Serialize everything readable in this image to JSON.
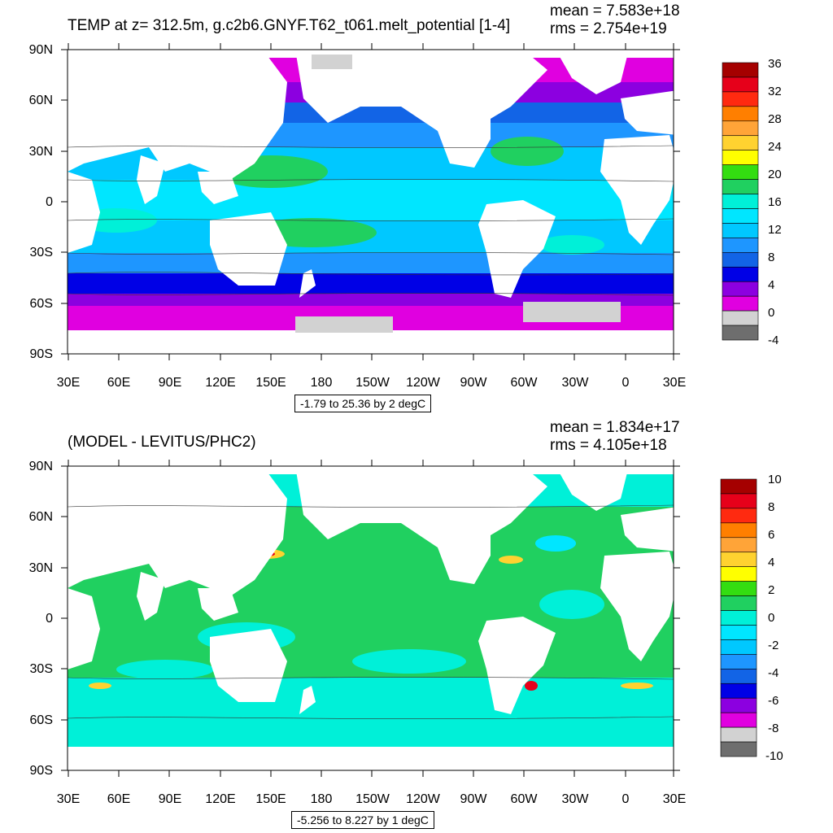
{
  "top_panel": {
    "title": "TEMP at z= 312.5m, g.c2b6.GNYF.T62_t061.melt_potential [1-4]",
    "mean_text": "mean = 7.583e+18",
    "rms_text": "rms = 2.754e+19",
    "range_text": "-1.79 to 25.36 by 2 degC",
    "colorbar_labels": [
      "36",
      "32",
      "28",
      "24",
      "20",
      "16",
      "12",
      "8",
      "4",
      "0",
      "-4"
    ],
    "colorbar_colors": [
      "#a50000",
      "#e6001a",
      "#ff2a10",
      "#ff7f00",
      "#ffa438",
      "#ffd230",
      "#ffff00",
      "#33dd11",
      "#20d060",
      "#00f0d8",
      "#00e6ff",
      "#00c8ff",
      "#1e96ff",
      "#1264e6",
      "#0000e6",
      "#8c00e0",
      "#e000e0",
      "#d2d2d2",
      "#6e6e6e"
    ]
  },
  "bottom_panel": {
    "title": "(MODEL - LEVITUS/PHC2)",
    "mean_text": "mean = 1.834e+17",
    "rms_text": "rms = 4.105e+18",
    "range_text": "-5.256 to 8.227 by 1 degC",
    "colorbar_labels": [
      "10",
      "8",
      "6",
      "4",
      "2",
      "0",
      "-2",
      "-4",
      "-6",
      "-8",
      "-10"
    ],
    "colorbar_colors": [
      "#a50000",
      "#e6001a",
      "#ff2a10",
      "#ff7f00",
      "#ffa438",
      "#ffd230",
      "#ffff00",
      "#33dd11",
      "#20d060",
      "#00f0d8",
      "#00e6ff",
      "#00c8ff",
      "#1e96ff",
      "#1264e6",
      "#0000e6",
      "#8c00e0",
      "#e000e0",
      "#d2d2d2",
      "#6e6e6e"
    ]
  },
  "lat_labels": [
    "90N",
    "60N",
    "30N",
    "0",
    "30S",
    "60S",
    "90S"
  ],
  "lon_labels": [
    "30E",
    "60E",
    "90E",
    "120E",
    "150E",
    "180",
    "150W",
    "120W",
    "90W",
    "60W",
    "30W",
    "0",
    "30E"
  ]
}
